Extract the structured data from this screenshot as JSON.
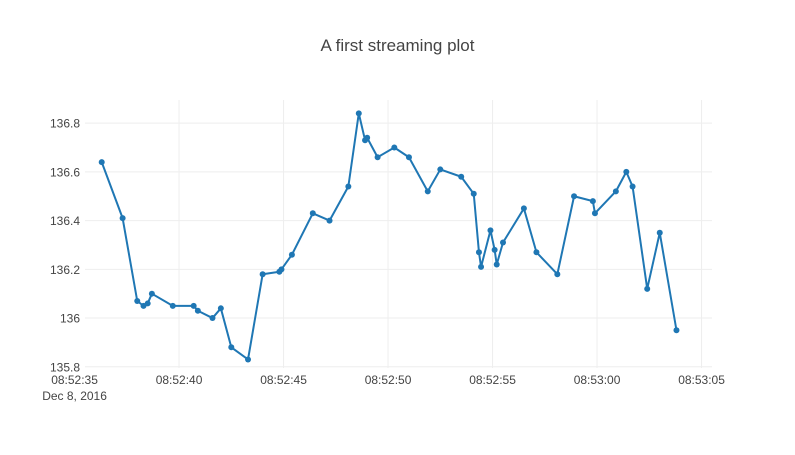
{
  "chart_data": {
    "type": "line",
    "title": "A first streaming plot",
    "xlabel": "",
    "ylabel": "",
    "grid": true,
    "legend": "none",
    "mode": "lines+markers",
    "line_color": "#1f77b4",
    "xlim": [
      "2016-12-08 08:52:35.5",
      "2016-12-08 08:53:05.5"
    ],
    "ylim": [
      135.795,
      136.895
    ],
    "x_ticks": [
      {
        "value": "2016-12-08 08:52:35",
        "label": "08:52:35",
        "sublabel": "Dec 8, 2016"
      },
      {
        "value": "2016-12-08 08:52:40",
        "label": "08:52:40",
        "sublabel": ""
      },
      {
        "value": "2016-12-08 08:52:45",
        "label": "08:52:45",
        "sublabel": ""
      },
      {
        "value": "2016-12-08 08:52:50",
        "label": "08:52:50",
        "sublabel": ""
      },
      {
        "value": "2016-12-08 08:52:55",
        "label": "08:52:55",
        "sublabel": ""
      },
      {
        "value": "2016-12-08 08:53:00",
        "label": "08:53:00",
        "sublabel": ""
      },
      {
        "value": "2016-12-08 08:53:05",
        "label": "08:53:05",
        "sublabel": ""
      }
    ],
    "y_ticks": [
      {
        "value": 135.8,
        "label": "135.8"
      },
      {
        "value": 136.0,
        "label": "136"
      },
      {
        "value": 136.2,
        "label": "136.2"
      },
      {
        "value": 136.4,
        "label": "136.4"
      },
      {
        "value": 136.6,
        "label": "136.6"
      },
      {
        "value": 136.8,
        "label": "136.8"
      }
    ],
    "series": [
      {
        "x": [
          "2016-12-08 08:52:36.3",
          "2016-12-08 08:52:37.3",
          "2016-12-08 08:52:38.0",
          "2016-12-08 08:52:38.3",
          "2016-12-08 08:52:38.5",
          "2016-12-08 08:52:38.7",
          "2016-12-08 08:52:39.7",
          "2016-12-08 08:52:40.7",
          "2016-12-08 08:52:40.9",
          "2016-12-08 08:52:41.6",
          "2016-12-08 08:52:42.0",
          "2016-12-08 08:52:42.5",
          "2016-12-08 08:52:43.3",
          "2016-12-08 08:52:44.0",
          "2016-12-08 08:52:44.8",
          "2016-12-08 08:52:44.9",
          "2016-12-08 08:52:45.4",
          "2016-12-08 08:52:46.4",
          "2016-12-08 08:52:47.2",
          "2016-12-08 08:52:48.1",
          "2016-12-08 08:52:48.6",
          "2016-12-08 08:52:48.9",
          "2016-12-08 08:52:49.0",
          "2016-12-08 08:52:49.5",
          "2016-12-08 08:52:50.3",
          "2016-12-08 08:52:51.0",
          "2016-12-08 08:52:51.9",
          "2016-12-08 08:52:52.5",
          "2016-12-08 08:52:53.5",
          "2016-12-08 08:52:54.1",
          "2016-12-08 08:52:54.35",
          "2016-12-08 08:52:54.45",
          "2016-12-08 08:52:54.9",
          "2016-12-08 08:52:55.1",
          "2016-12-08 08:52:55.2",
          "2016-12-08 08:52:55.5",
          "2016-12-08 08:52:56.5",
          "2016-12-08 08:52:57.1",
          "2016-12-08 08:52:58.1",
          "2016-12-08 08:52:58.9",
          "2016-12-08 08:52:59.8",
          "2016-12-08 08:52:59.9",
          "2016-12-08 08:53:00.9",
          "2016-12-08 08:53:01.4",
          "2016-12-08 08:53:01.7",
          "2016-12-08 08:53:02.4",
          "2016-12-08 08:53:03.0",
          "2016-12-08 08:53:03.8"
        ],
        "values": [
          136.64,
          136.41,
          136.07,
          136.05,
          136.06,
          136.1,
          136.05,
          136.05,
          136.03,
          136.0,
          136.04,
          135.88,
          135.83,
          136.18,
          136.19,
          136.2,
          136.26,
          136.43,
          136.4,
          136.54,
          136.84,
          136.73,
          136.74,
          136.66,
          136.7,
          136.66,
          136.52,
          136.61,
          136.58,
          136.51,
          136.27,
          136.21,
          136.36,
          136.28,
          136.22,
          136.31,
          136.45,
          136.27,
          136.18,
          136.5,
          136.48,
          136.43,
          136.52,
          136.6,
          136.54,
          136.12,
          136.35,
          135.95
        ]
      }
    ]
  }
}
